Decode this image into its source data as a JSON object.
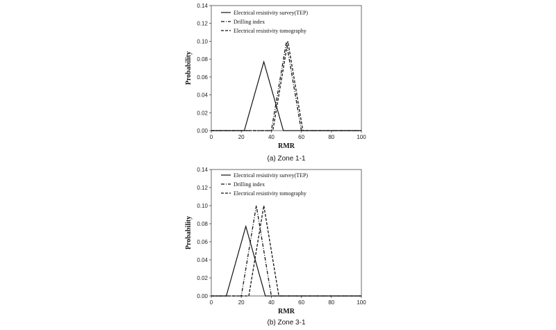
{
  "chart_data": [
    {
      "type": "line",
      "caption": "(a)  Zone  1-1",
      "xlabel": "RMR",
      "ylabel": "Probability",
      "xlim": [
        0,
        100
      ],
      "ylim": [
        0,
        0.14
      ],
      "xticks": [
        "0",
        "20",
        "40",
        "60",
        "80",
        "100"
      ],
      "yticks": [
        "0.00",
        "0.02",
        "0.04",
        "0.06",
        "0.08",
        "0.10",
        "0.12",
        "0.14"
      ],
      "legend_position": "top-left",
      "series": [
        {
          "name": "Electrical resistivity survey(TEP)",
          "style": "solid",
          "points": [
            [
              0,
              0
            ],
            [
              22,
              0
            ],
            [
              35,
              0.077
            ],
            [
              48,
              0
            ],
            [
              100,
              0
            ]
          ]
        },
        {
          "name": "Drilling index",
          "style": "dashdot",
          "points": [
            [
              0,
              0
            ],
            [
              40,
              0
            ],
            [
              50,
              0.099
            ],
            [
              60,
              0
            ],
            [
              100,
              0
            ]
          ]
        },
        {
          "name": "Electrical resistivity tomography",
          "style": "dashed",
          "points": [
            [
              0,
              0
            ],
            [
              41,
              0
            ],
            [
              51,
              0.1
            ],
            [
              61,
              0
            ],
            [
              100,
              0
            ]
          ]
        }
      ]
    },
    {
      "type": "line",
      "caption": "(b)  Zone  3-1",
      "xlabel": "RMR",
      "ylabel": "Probability",
      "xlim": [
        0,
        100
      ],
      "ylim": [
        0,
        0.14
      ],
      "xticks": [
        "0",
        "20",
        "40",
        "60",
        "80",
        "100"
      ],
      "yticks": [
        "0.00",
        "0.02",
        "0.04",
        "0.06",
        "0.08",
        "0.10",
        "0.12",
        "0.14"
      ],
      "legend_position": "top-left",
      "series": [
        {
          "name": "Electrical resistivity survey(TEP)",
          "style": "solid",
          "points": [
            [
              0,
              0
            ],
            [
              10,
              0
            ],
            [
              23,
              0.077
            ],
            [
              36,
              0
            ],
            [
              100,
              0
            ]
          ]
        },
        {
          "name": "Drilling index",
          "style": "dashdot",
          "points": [
            [
              0,
              0
            ],
            [
              20,
              0
            ],
            [
              30,
              0.1
            ],
            [
              40,
              0
            ],
            [
              100,
              0
            ]
          ]
        },
        {
          "name": "Electrical resistivity tomography",
          "style": "dashed",
          "points": [
            [
              0,
              0
            ],
            [
              25,
              0
            ],
            [
              35,
              0.1
            ],
            [
              45,
              0
            ],
            [
              100,
              0
            ]
          ]
        }
      ]
    }
  ]
}
